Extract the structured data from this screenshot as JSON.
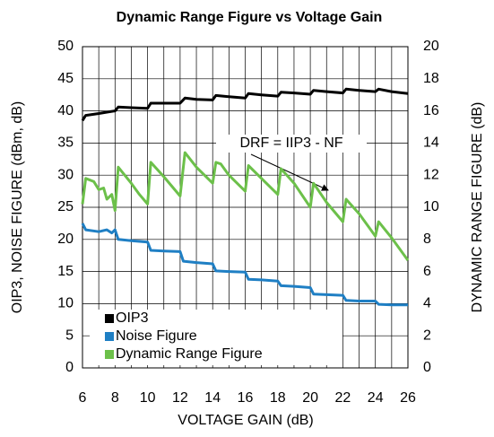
{
  "chart_data": {
    "type": "line",
    "title": "Dynamic Range Figure vs Voltage Gain",
    "x_label": "VOLTAGE GAIN (dB)",
    "y_label": "OIP3, NOISE FIGURE (dBm, dB)",
    "y2_label": "DYNAMIC RANGE FIGURE (dB)",
    "xlim": [
      6,
      26
    ],
    "xticks": [
      6,
      8,
      10,
      12,
      14,
      16,
      18,
      20,
      22,
      24,
      26
    ],
    "xminorticks": [
      7,
      9,
      11,
      13,
      15,
      17,
      19,
      21,
      23,
      25
    ],
    "ylim": [
      0,
      50
    ],
    "yticks": [
      0,
      5,
      10,
      15,
      20,
      25,
      30,
      35,
      40,
      45,
      50
    ],
    "y2lim": [
      0,
      20
    ],
    "y2ticks": [
      0,
      2,
      4,
      6,
      8,
      10,
      12,
      14,
      16,
      18,
      20
    ],
    "grid": true,
    "legend": "lower left",
    "annotation": "DRF = IIP3 - NF",
    "series": [
      {
        "name": "OIP3",
        "color": "#000000",
        "x": [
          6.0,
          6.2,
          7.0,
          7.5,
          8.0,
          8.2,
          9.0,
          10.0,
          10.2,
          11.0,
          12.0,
          12.3,
          13.0,
          14.0,
          14.2,
          15.0,
          16.0,
          16.2,
          17.0,
          18.0,
          18.2,
          19.0,
          20.0,
          20.2,
          21.0,
          22.0,
          22.2,
          23.0,
          24.0,
          24.2,
          25.0,
          26.0
        ],
        "values": [
          38.5,
          39.3,
          39.6,
          39.8,
          40.0,
          40.6,
          40.5,
          40.4,
          41.2,
          41.2,
          41.2,
          42.0,
          41.8,
          41.7,
          42.4,
          42.2,
          42.0,
          42.7,
          42.5,
          42.3,
          42.9,
          42.8,
          42.6,
          43.2,
          43.0,
          42.8,
          43.4,
          43.2,
          43.0,
          43.4,
          43.0,
          42.7
        ]
      },
      {
        "name": "Noise Figure",
        "color": "#1f7fc4",
        "x": [
          6.0,
          6.2,
          7.0,
          7.5,
          7.8,
          8.0,
          8.2,
          9.0,
          10.0,
          10.2,
          11.0,
          12.0,
          12.2,
          13.0,
          14.0,
          14.2,
          15.0,
          16.0,
          16.2,
          17.0,
          18.0,
          18.2,
          19.0,
          20.0,
          20.2,
          21.0,
          22.0,
          22.2,
          23.0,
          24.0,
          24.2,
          25.0,
          26.0
        ],
        "values": [
          22.5,
          21.5,
          21.2,
          21.5,
          21.0,
          21.5,
          20.0,
          19.8,
          19.6,
          18.3,
          18.2,
          18.1,
          16.6,
          16.4,
          16.2,
          15.1,
          15.0,
          14.9,
          13.8,
          13.7,
          13.5,
          12.8,
          12.7,
          12.5,
          11.5,
          11.4,
          11.3,
          10.5,
          10.4,
          10.4,
          9.9,
          9.8,
          9.8
        ]
      },
      {
        "name": "Dynamic Range Figure",
        "color": "#6cc04a",
        "axis": "y2",
        "x": [
          6.0,
          6.2,
          6.7,
          7.0,
          7.3,
          7.5,
          7.8,
          8.0,
          8.2,
          9.0,
          9.5,
          10.0,
          10.2,
          11.0,
          12.0,
          12.3,
          13.0,
          14.0,
          14.2,
          14.5,
          15.0,
          16.0,
          16.2,
          17.0,
          18.0,
          18.2,
          19.0,
          20.0,
          20.2,
          21.0,
          22.0,
          22.2,
          23.0,
          24.0,
          24.2,
          25.0,
          26.0
        ],
        "values": [
          10.2,
          11.8,
          11.6,
          11.1,
          11.2,
          10.5,
          10.8,
          9.8,
          12.5,
          11.5,
          10.8,
          10.2,
          12.8,
          11.9,
          10.7,
          13.4,
          12.5,
          11.5,
          12.8,
          12.7,
          12.0,
          11.0,
          12.6,
          11.8,
          10.8,
          12.4,
          11.5,
          10.0,
          11.5,
          10.3,
          9.1,
          10.5,
          9.6,
          8.2,
          9.1,
          8.1,
          6.7
        ]
      }
    ]
  }
}
